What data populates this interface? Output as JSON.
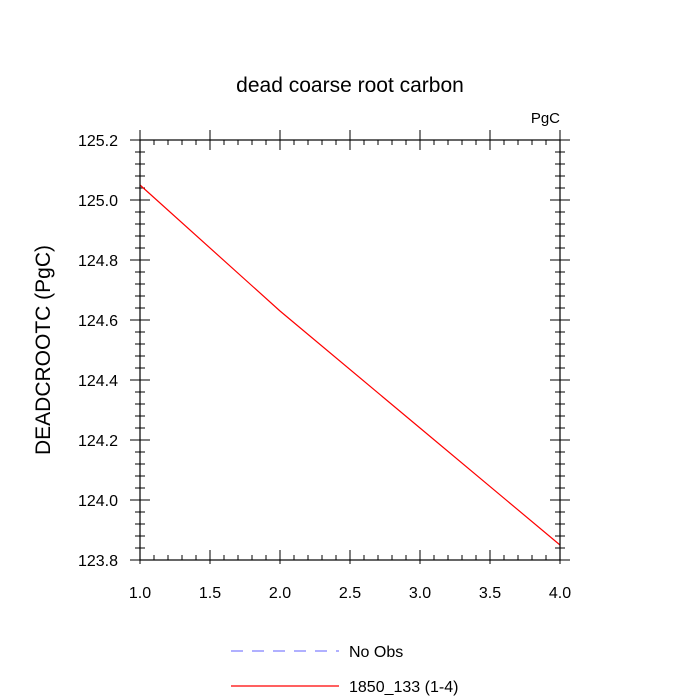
{
  "chart_data": {
    "type": "line",
    "title": "dead coarse root carbon",
    "units_label": "PgC",
    "ylabel": "DEADCROOTC  (PgC)",
    "xlabel": "",
    "xlim": [
      1.0,
      4.0
    ],
    "ylim": [
      123.8,
      125.2
    ],
    "x_ticks": [
      "1.0",
      "1.5",
      "2.0",
      "2.5",
      "3.0",
      "3.5",
      "4.0"
    ],
    "y_ticks": [
      "123.8",
      "124.0",
      "124.2",
      "124.4",
      "124.6",
      "124.8",
      "125.0",
      "125.2"
    ],
    "grid": false,
    "legend_position": "bottom",
    "series": [
      {
        "name": "1850_133 (1-4)",
        "color": "#ff0000",
        "style": "solid",
        "x": [
          1.0,
          2.0,
          3.0,
          4.0
        ],
        "y": [
          125.05,
          124.63,
          124.24,
          123.85
        ]
      }
    ],
    "legend": [
      {
        "label": "No Obs",
        "color": "#8080ff",
        "style": "dashed"
      },
      {
        "label": "1850_133 (1-4)",
        "color": "#ff0000",
        "style": "solid"
      }
    ]
  }
}
